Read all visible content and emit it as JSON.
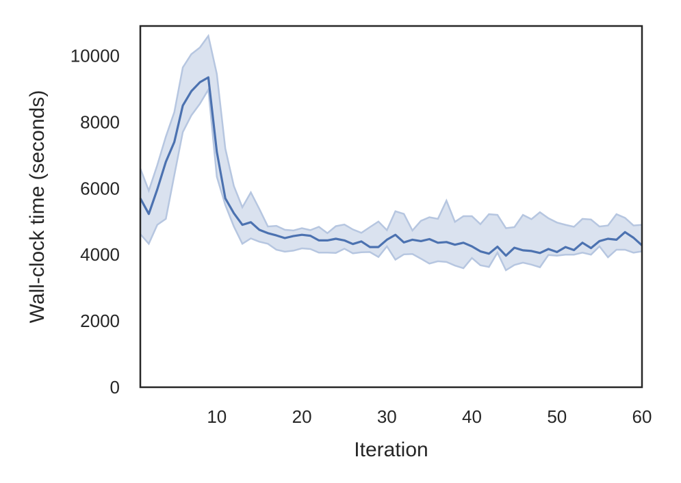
{
  "chart_data": {
    "type": "line",
    "title": "",
    "xlabel": "Iteration",
    "ylabel": "Wall-clock time (seconds)",
    "xlim": [
      1,
      60
    ],
    "ylim": [
      0,
      10900
    ],
    "xticks": [
      10,
      20,
      30,
      40,
      50,
      60
    ],
    "yticks": [
      0,
      2000,
      4000,
      6000,
      8000,
      10000
    ],
    "grid": false,
    "legend": "none",
    "colors": {
      "line": "#4c72b0",
      "band_fill": "#dae2ef",
      "band_edge": "#b6c6e0",
      "axes": "#262626"
    },
    "series": [
      {
        "x": [
          1,
          2,
          3,
          4,
          5,
          6,
          7,
          8,
          9,
          10,
          11,
          12,
          13,
          14,
          15,
          16,
          17,
          18,
          19,
          20,
          21,
          22,
          23,
          24,
          25,
          26,
          27,
          28,
          29,
          30,
          31,
          32,
          33,
          34,
          35,
          36,
          37,
          38,
          39,
          40,
          41,
          42,
          43,
          44,
          45,
          46,
          47,
          48,
          49,
          50,
          51,
          52,
          53,
          54,
          55,
          56,
          57,
          58,
          59,
          60
        ],
        "mean": [
          5700,
          5230,
          5970,
          6800,
          7400,
          8500,
          8930,
          9200,
          9350,
          7100,
          5700,
          5250,
          4900,
          4980,
          4750,
          4650,
          4580,
          4500,
          4560,
          4600,
          4570,
          4430,
          4430,
          4480,
          4430,
          4320,
          4400,
          4230,
          4230,
          4450,
          4600,
          4370,
          4450,
          4410,
          4470,
          4360,
          4380,
          4300,
          4360,
          4250,
          4100,
          4030,
          4240,
          3970,
          4210,
          4130,
          4110,
          4050,
          4170,
          4080,
          4230,
          4140,
          4360,
          4200,
          4410,
          4480,
          4450,
          4680,
          4510,
          4280
        ],
        "upper": [
          6600,
          5930,
          6700,
          7560,
          8300,
          9650,
          10050,
          10250,
          10600,
          9450,
          7200,
          6070,
          5430,
          5880,
          5380,
          4850,
          4870,
          4750,
          4730,
          4800,
          4740,
          4840,
          4650,
          4860,
          4910,
          4760,
          4660,
          4830,
          5000,
          4740,
          5310,
          5230,
          4730,
          5020,
          5130,
          5080,
          5630,
          4990,
          5160,
          5160,
          4920,
          5220,
          5200,
          4800,
          4830,
          5200,
          5070,
          5280,
          5100,
          4970,
          4900,
          4840,
          5080,
          5060,
          4850,
          4880,
          5220,
          5110,
          4880,
          4900
        ],
        "lower": [
          4620,
          4330,
          4900,
          5080,
          6400,
          7700,
          8200,
          8550,
          8980,
          6350,
          5500,
          4850,
          4330,
          4490,
          4390,
          4330,
          4150,
          4090,
          4120,
          4190,
          4170,
          4060,
          4060,
          4050,
          4180,
          4040,
          4070,
          4080,
          3930,
          4250,
          3850,
          4010,
          4020,
          3880,
          3730,
          3800,
          3780,
          3670,
          3590,
          3900,
          3680,
          3630,
          4060,
          3530,
          3690,
          3760,
          3700,
          3620,
          3990,
          3970,
          4000,
          4000,
          4060,
          4000,
          4250,
          3920,
          4150,
          4150,
          4060,
          4100
        ]
      }
    ]
  }
}
